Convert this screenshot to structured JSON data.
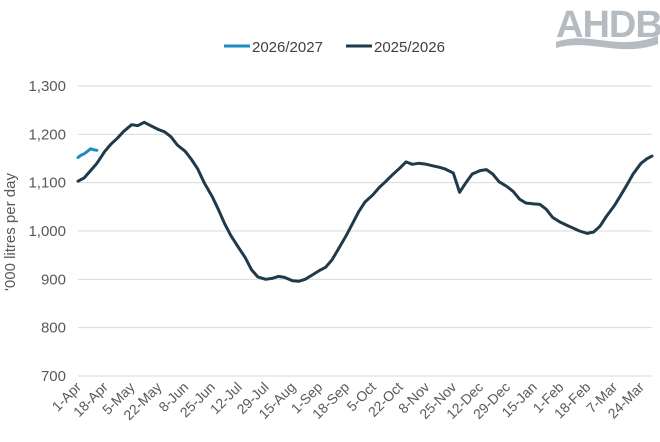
{
  "logo": {
    "text": "AHDB",
    "color": "#b4bcc2"
  },
  "chart_data": {
    "type": "line",
    "title": "",
    "xlabel": "",
    "ylabel": "'000 litres per day",
    "ylim": [
      700,
      1300
    ],
    "yticks": [
      700,
      800,
      900,
      1000,
      1100,
      1200,
      1300
    ],
    "ytick_labels": [
      "700",
      "800",
      "900",
      "1,000",
      "1,100",
      "1,200",
      "1,300"
    ],
    "grid": true,
    "legend_position": "top",
    "categories": [
      "1-Apr",
      "18-Apr",
      "5-May",
      "22-May",
      "8-Jun",
      "25-Jun",
      "12-Jul",
      "29-Jul",
      "15-Aug",
      "1-Sep",
      "18-Sep",
      "5-Oct",
      "22-Oct",
      "8-Nov",
      "25-Nov",
      "12-Dec",
      "29-Dec",
      "15-Jan",
      "1-Feb",
      "18-Feb",
      "7-Mar",
      "24-Mar"
    ],
    "series": [
      {
        "name": "2026/2027",
        "color": "#1e8bc3",
        "day_offsets": [
          0,
          2,
          4,
          6,
          8,
          10,
          12
        ],
        "values": [
          1152,
          1157,
          1160,
          1165,
          1170,
          1168,
          1167
        ]
      },
      {
        "name": "2025/2026",
        "color": "#1f3a4a",
        "day_offsets": [
          0,
          4,
          8,
          12,
          17,
          21,
          25,
          29,
          34,
          38,
          42,
          46,
          51,
          55,
          59,
          63,
          68,
          72,
          76,
          80,
          85,
          89,
          93,
          97,
          102,
          106,
          110,
          114,
          119,
          123,
          127,
          131,
          136,
          140,
          144,
          148,
          153,
          157,
          161,
          165,
          170,
          174,
          178,
          182,
          187,
          191,
          195,
          199,
          204,
          208,
          212,
          216,
          221,
          225,
          229,
          233,
          238,
          242,
          246,
          250,
          255,
          259,
          263,
          267,
          272,
          276,
          280,
          284,
          289,
          293,
          297,
          301,
          306,
          310,
          314,
          318,
          323,
          327,
          331,
          335,
          340,
          344,
          348,
          352,
          357,
          361,
          364
        ],
        "values": [
          1103,
          1110,
          1125,
          1140,
          1165,
          1180,
          1192,
          1206,
          1220,
          1218,
          1225,
          1218,
          1210,
          1205,
          1195,
          1178,
          1165,
          1148,
          1128,
          1100,
          1072,
          1045,
          1015,
          990,
          965,
          945,
          920,
          905,
          900,
          902,
          906,
          904,
          897,
          896,
          900,
          908,
          918,
          925,
          940,
          962,
          990,
          1015,
          1040,
          1060,
          1075,
          1090,
          1102,
          1115,
          1130,
          1143,
          1138,
          1140,
          1138,
          1135,
          1132,
          1128,
          1120,
          1080,
          1100,
          1118,
          1125,
          1127,
          1118,
          1102,
          1092,
          1082,
          1066,
          1058,
          1056,
          1055,
          1045,
          1028,
          1018,
          1012,
          1006,
          1000,
          995,
          998,
          1010,
          1030,
          1052,
          1073,
          1095,
          1118,
          1140,
          1150,
          1155
        ]
      }
    ]
  }
}
